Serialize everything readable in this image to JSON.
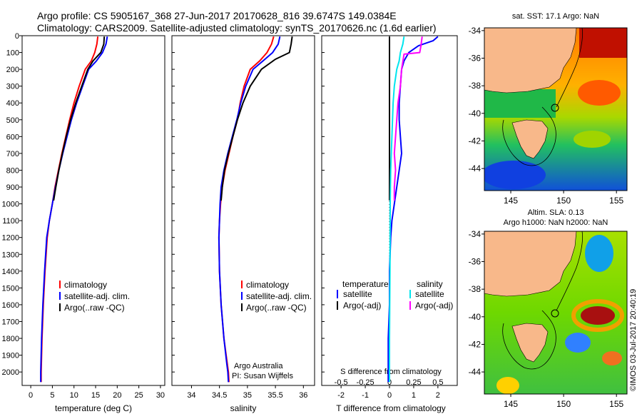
{
  "header": {
    "title_line1": "Argo profile: CS 5905167_368 27-Jun-2017 20170628_816 39.6747S 149.0384E",
    "title_line2": "Climatology: CARS2009. Satellite-adjusted climatology: synTS_20170626.nc (1.6d earlier)"
  },
  "colors": {
    "climatology": "#ff0000",
    "satellite": "#0000ff",
    "argo": "#000000",
    "sal_satellite": "#00e5ee",
    "sal_argo": "#ff00ff",
    "land": "#f8b88a"
  },
  "depth_axis": {
    "ticks": [
      "0",
      "100",
      "200",
      "300",
      "400",
      "500",
      "600",
      "700",
      "800",
      "900",
      "1000",
      "1100",
      "1200",
      "1300",
      "1400",
      "1500",
      "1600",
      "1700",
      "1800",
      "1900",
      "2000"
    ]
  },
  "chart_data": [
    {
      "type": "line",
      "name": "temperature-profile",
      "xlabel": "temperature (deg C)",
      "ylabel": "depth",
      "xlim": [
        -2,
        31
      ],
      "ylim": [
        2080,
        0
      ],
      "xticks": [
        "0",
        "5",
        "10",
        "15",
        "20",
        "25",
        "30"
      ],
      "legend": [
        "climatology",
        "satellite-adj. clim.",
        "Argo(..raw -QC)"
      ],
      "series": [
        {
          "name": "climatology",
          "color": "#ff0000",
          "x": [
            15.5,
            15.3,
            14.8,
            14.0,
            12.6,
            11.2,
            10.0,
            9.0,
            8.1,
            7.2,
            6.4,
            5.6,
            5.0,
            4.3,
            3.8,
            3.3,
            2.9,
            2.6,
            2.4,
            2.4
          ],
          "y": [
            5,
            50,
            100,
            150,
            200,
            300,
            400,
            500,
            600,
            700,
            800,
            900,
            1000,
            1100,
            1200,
            1400,
            1600,
            1800,
            2000,
            2060
          ]
        },
        {
          "name": "satellite-adj. clim.",
          "color": "#0000ff",
          "x": [
            17.7,
            17.4,
            16.6,
            15.2,
            13.4,
            12.0,
            10.6,
            9.4,
            8.4,
            7.4,
            6.5,
            5.7,
            5.0,
            4.3,
            3.7,
            3.2,
            2.8,
            2.5,
            2.3,
            2.3
          ],
          "y": [
            5,
            50,
            100,
            150,
            200,
            300,
            400,
            500,
            600,
            700,
            800,
            900,
            1000,
            1100,
            1200,
            1400,
            1600,
            1800,
            2000,
            2060
          ]
        },
        {
          "name": "Argo(..raw -QC)",
          "color": "#000000",
          "x": [
            17.0,
            16.9,
            16.2,
            14.4,
            13.2,
            11.8,
            10.4,
            9.2,
            8.2,
            7.3,
            6.5,
            5.8,
            5.3
          ],
          "y": [
            5,
            50,
            100,
            150,
            200,
            300,
            400,
            500,
            600,
            700,
            800,
            900,
            980
          ]
        }
      ]
    },
    {
      "type": "line",
      "name": "salinity-profile",
      "xlabel": "salinity",
      "xlim": [
        33.65,
        36.2
      ],
      "ylim": [
        2080,
        0
      ],
      "xticks": [
        "34",
        "34.5",
        "35",
        "35.5",
        "36"
      ],
      "legend": [
        "climatology",
        "satellite-adj. clim.",
        "Argo(..raw -QC)"
      ],
      "annotation": [
        "Argo Australia",
        "PI: Susan Wijffels"
      ],
      "series": [
        {
          "name": "climatology",
          "color": "#ff0000",
          "x": [
            35.47,
            35.43,
            35.35,
            35.22,
            35.05,
            34.94,
            34.87,
            34.82,
            34.74,
            34.67,
            34.6,
            34.55,
            34.52,
            34.5,
            34.49,
            34.5,
            34.53,
            34.58,
            34.64,
            34.66,
            34.67
          ],
          "y": [
            5,
            50,
            100,
            150,
            200,
            300,
            400,
            500,
            600,
            700,
            800,
            900,
            1000,
            1100,
            1200,
            1400,
            1600,
            1800,
            1950,
            2000,
            2060
          ]
        },
        {
          "name": "satellite-adj. clim.",
          "color": "#0000ff",
          "x": [
            35.58,
            35.55,
            35.45,
            35.28,
            35.1,
            34.97,
            34.88,
            34.81,
            34.73,
            34.65,
            34.58,
            34.53,
            34.51,
            34.5,
            34.49,
            34.5,
            34.53,
            34.58,
            34.63,
            34.65,
            34.66
          ],
          "y": [
            5,
            50,
            100,
            150,
            200,
            300,
            400,
            500,
            600,
            700,
            800,
            900,
            1000,
            1100,
            1200,
            1400,
            1600,
            1800,
            1950,
            2000,
            2060
          ]
        },
        {
          "name": "Argo(..raw -QC)",
          "color": "#000000",
          "x": [
            35.8,
            35.78,
            35.75,
            35.5,
            35.25,
            35.05,
            34.92,
            34.82,
            34.74,
            34.66,
            34.59,
            34.55,
            34.53
          ],
          "y": [
            5,
            50,
            100,
            140,
            200,
            300,
            400,
            500,
            600,
            700,
            800,
            900,
            980
          ]
        }
      ]
    },
    {
      "type": "line",
      "name": "difference-from-climatology",
      "xlabel_bottom": "T difference from climatology",
      "xlabel_top": "S difference from climatology",
      "xlim_T": [
        -2.8,
        2.8
      ],
      "xticks_T": [
        "-2",
        "-1",
        "0",
        "1",
        "2"
      ],
      "xticks_S": [
        "-0.5",
        "-0.25",
        "0",
        "0.25",
        "0.5"
      ],
      "ylim": [
        2080,
        0
      ],
      "legend_temperature": [
        "temperature",
        "satellite",
        "Argo(-adj)"
      ],
      "legend_salinity": [
        "salinity",
        "satellite",
        "Argo(-adj)"
      ],
      "series": [
        {
          "name": "temperature satellite",
          "color": "#0000ff",
          "x_T": [
            2.0,
            1.8,
            1.2,
            0.8,
            0.6,
            0.5,
            0.45,
            0.4,
            0.4,
            0.45,
            0.5,
            0.4,
            0.3,
            0.2,
            0.1,
            0.05,
            0.0,
            0.0,
            -0.05,
            -0.05,
            -0.05
          ],
          "y": [
            5,
            30,
            60,
            100,
            150,
            200,
            300,
            400,
            500,
            600,
            700,
            800,
            900,
            1000,
            1100,
            1200,
            1400,
            1600,
            1800,
            2000,
            2060
          ]
        },
        {
          "name": "temperature Argo(-adj)",
          "color": "#000000",
          "x_T": [
            0.0,
            0.0
          ],
          "y": [
            5,
            980
          ]
        },
        {
          "name": "salinity satellite",
          "color": "#00e5ee",
          "x_T": [
            0.6,
            0.55,
            0.45,
            0.4,
            0.3,
            0.2,
            0.15,
            0.1,
            0.05,
            0.03,
            0.02,
            0.0,
            0.0
          ],
          "y": [
            5,
            50,
            100,
            150,
            200,
            300,
            400,
            600,
            800,
            1000,
            1400,
            1800,
            2060
          ]
        },
        {
          "name": "salinity Argo(-adj)",
          "color": "#ff00ff",
          "x_T": [
            1.35,
            1.3,
            1.25,
            0.6,
            0.5,
            0.45,
            0.35,
            0.3,
            0.25,
            0.2,
            0.25,
            0.2,
            0.2
          ],
          "y": [
            5,
            60,
            100,
            110,
            200,
            300,
            400,
            500,
            600,
            700,
            800,
            900,
            980
          ]
        }
      ]
    },
    {
      "type": "heatmap",
      "name": "sst-map",
      "title": "sat. SST: 17.1  Argo: NaN",
      "xticks": [
        "145",
        "150",
        "155"
      ],
      "yticks": [
        "-34",
        "-36",
        "-38",
        "-40",
        "-42",
        "-44"
      ],
      "xlim": [
        142.5,
        156
      ],
      "ylim": [
        -45.6,
        -33.8
      ],
      "float_position": {
        "lon": 149.0384,
        "lat": -39.6747
      }
    },
    {
      "type": "heatmap",
      "name": "sla-map",
      "title_line1": "Altim. SLA: 0.13",
      "title_line2": "Argo h1000: NaN h2000: NaN",
      "side_label": "©IMOS 03-Jul-2017 20:40:19",
      "xticks": [
        "145",
        "150",
        "155"
      ],
      "yticks": [
        "-34",
        "-36",
        "-38",
        "-40",
        "-42",
        "-44"
      ],
      "xlim": [
        142.5,
        156
      ],
      "ylim": [
        -45.6,
        -33.8
      ],
      "float_position": {
        "lon": 149.0384,
        "lat": -39.6747
      }
    }
  ]
}
